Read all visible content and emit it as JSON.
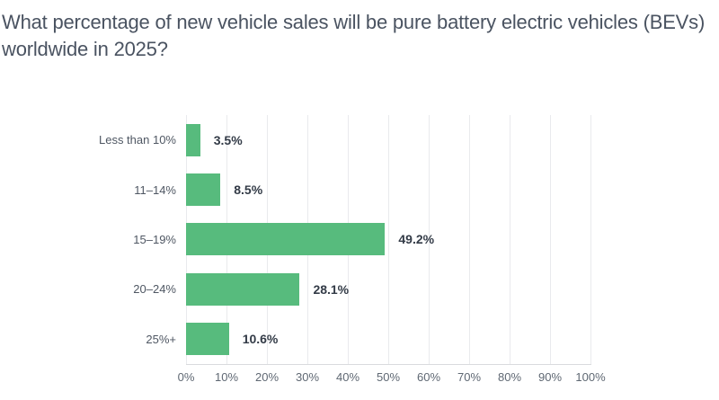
{
  "title": "What percentage of new vehicle sales will be pure battery electric vehicles (BEVs) worldwide in 2025?",
  "colors": {
    "bar": "#57bb7d",
    "title_text": "#4a5361",
    "category_text": "#4f5763",
    "value_text": "#333b47",
    "tick_text": "#5f6873",
    "gridline": "#e9eaed",
    "axis_line": "#d9dbde"
  },
  "chart_data": {
    "type": "bar",
    "orientation": "horizontal",
    "title": "What percentage of new vehicle sales will be pure battery electric vehicles (BEVs) worldwide in 2025?",
    "categories": [
      "Less than 10%",
      "11–14%",
      "15–19%",
      "20–24%",
      "25%+"
    ],
    "values": [
      3.5,
      8.5,
      49.2,
      28.1,
      10.6
    ],
    "value_labels": [
      "3.5%",
      "8.5%",
      "49.2%",
      "28.1%",
      "10.6%"
    ],
    "x_tick_labels": [
      "0%",
      "10%",
      "20%",
      "30%",
      "40%",
      "50%",
      "60%",
      "70%",
      "80%",
      "90%",
      "100%"
    ],
    "xlim": [
      0,
      100
    ],
    "xlabel": "",
    "ylabel": "",
    "grid": true,
    "legend": false,
    "bar_color": "#57bb7d"
  }
}
